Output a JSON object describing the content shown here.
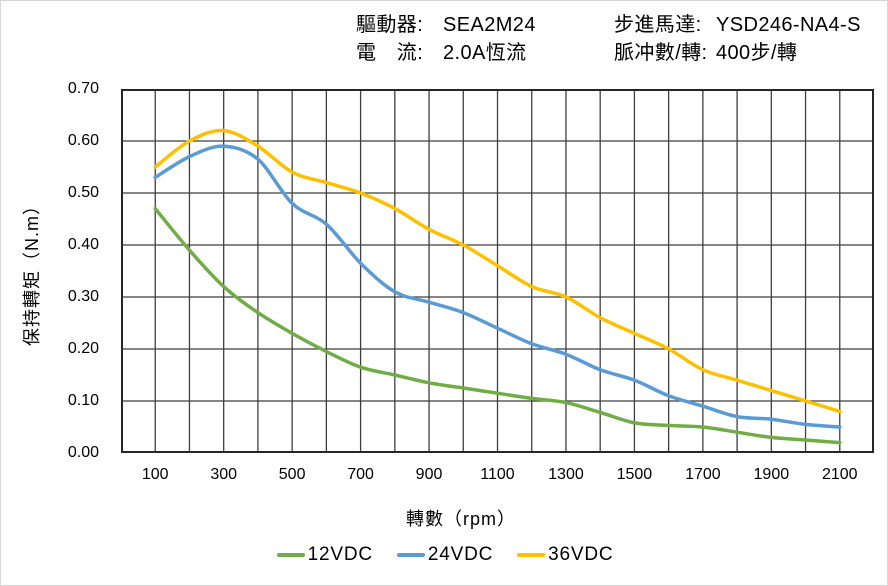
{
  "page": {
    "background": "#ffffff",
    "border_color": "#d6d6d6"
  },
  "header": {
    "left_rows": [
      {
        "label": "驅動器:",
        "value": "SEA2M24"
      },
      {
        "label": "電　流:",
        "value": "2.0A恆流"
      }
    ],
    "right_rows": [
      {
        "label": "步進馬達:",
        "value": "YSD246-NA4-S"
      },
      {
        "label": "脈冲數/轉:",
        "value": "400步/轉"
      }
    ]
  },
  "chart_data": {
    "type": "line",
    "title": "",
    "xlabel": "轉數（rpm）",
    "ylabel": "保持轉矩（N.m）",
    "x": [
      100,
      200,
      300,
      400,
      500,
      600,
      700,
      800,
      900,
      1000,
      1100,
      1200,
      1300,
      1400,
      1500,
      1600,
      1700,
      1800,
      1900,
      2000,
      2100
    ],
    "series": [
      {
        "name": "12VDC",
        "color": "#70AD47",
        "values": [
          0.47,
          0.39,
          0.32,
          0.27,
          0.23,
          0.195,
          0.165,
          0.15,
          0.135,
          0.125,
          0.115,
          0.105,
          0.097,
          0.078,
          0.058,
          0.053,
          0.05,
          0.04,
          0.03,
          0.025,
          0.02
        ]
      },
      {
        "name": "24VDC",
        "color": "#5B9BD5",
        "values": [
          0.53,
          0.57,
          0.59,
          0.565,
          0.48,
          0.44,
          0.365,
          0.31,
          0.29,
          0.27,
          0.24,
          0.21,
          0.19,
          0.16,
          0.14,
          0.11,
          0.09,
          0.07,
          0.065,
          0.055,
          0.05
        ]
      },
      {
        "name": "36VDC",
        "color": "#FFC000",
        "values": [
          0.55,
          0.6,
          0.62,
          0.59,
          0.54,
          0.52,
          0.5,
          0.47,
          0.43,
          0.4,
          0.36,
          0.32,
          0.3,
          0.26,
          0.23,
          0.2,
          0.16,
          0.14,
          0.12,
          0.1,
          0.08
        ]
      }
    ],
    "xlim": [
      0,
      2200
    ],
    "ylim": [
      0,
      0.7
    ],
    "x_tick_labels": [
      "100",
      "300",
      "500",
      "700",
      "900",
      "1100",
      "1300",
      "1500",
      "1700",
      "1900",
      "2100"
    ],
    "y_tick_labels": [
      "0.00",
      "0.10",
      "0.20",
      "0.30",
      "0.40",
      "0.50",
      "0.60",
      "0.70"
    ],
    "grid": {
      "x_step_rpm": 100,
      "y_step_nm": 0.1,
      "on": true
    },
    "legend_position": "bottom",
    "smooth_lines": true
  },
  "colors": {
    "series_12vdc": "#70AD47",
    "series_24vdc": "#5B9BD5",
    "series_36vdc": "#FFC000",
    "gridline": "#3f3f3f",
    "plot_border": "#262626",
    "text": "#000000"
  }
}
